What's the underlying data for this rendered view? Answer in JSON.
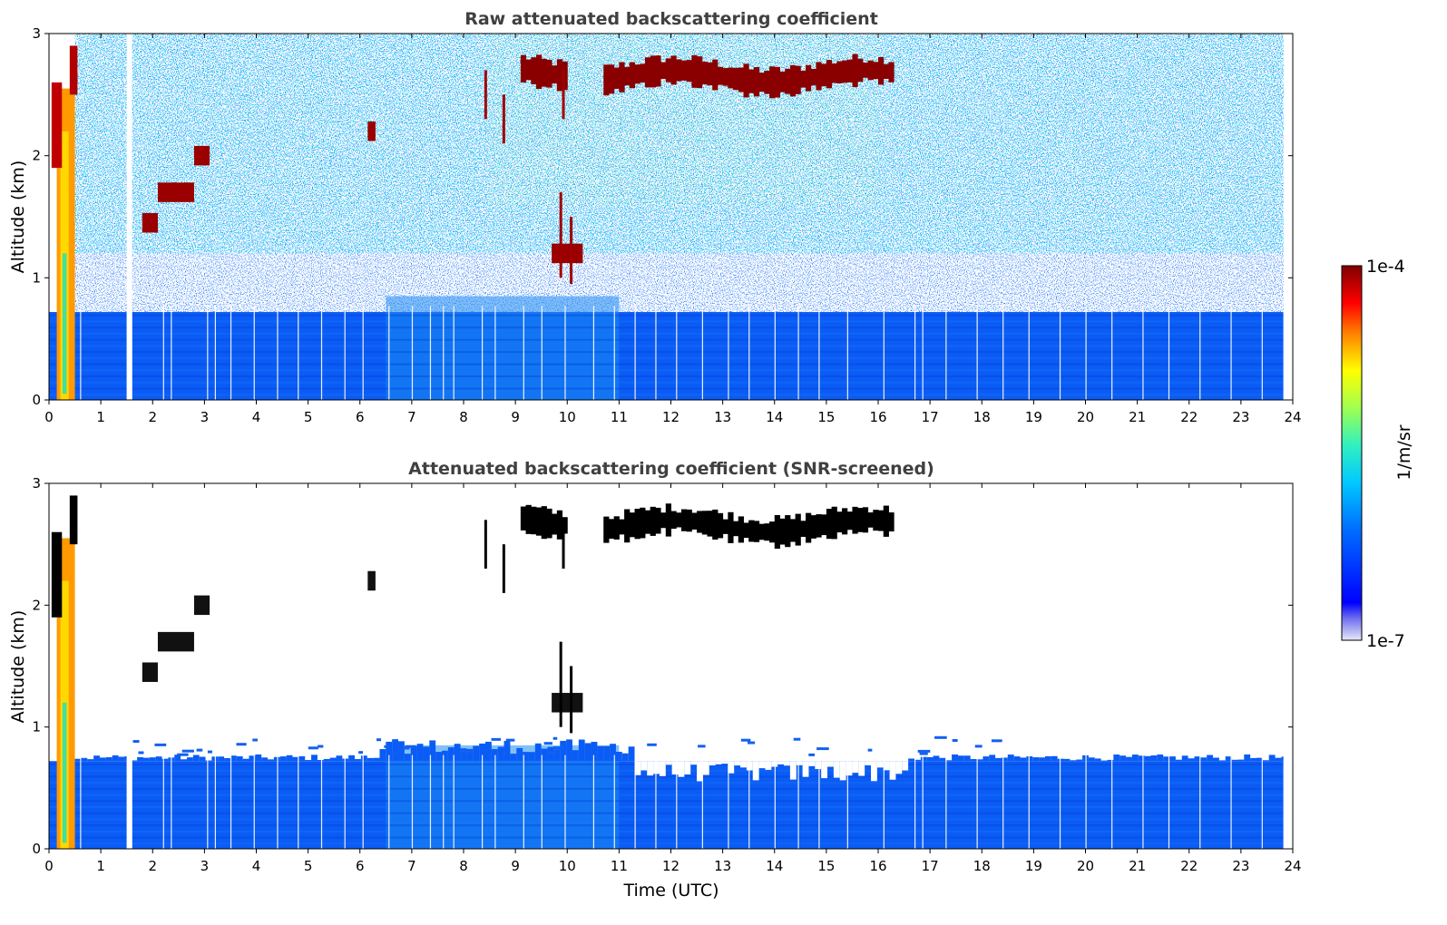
{
  "chart_data": [
    {
      "type": "heatmap",
      "title": "Raw attenuated backscattering coefficient",
      "ylabel": "Altitude (km)",
      "xlabel": "",
      "xlim": [
        0,
        24
      ],
      "ylim": [
        0,
        3
      ],
      "x_ticks": [
        "0",
        "1",
        "2",
        "3",
        "4",
        "5",
        "6",
        "7",
        "8",
        "9",
        "10",
        "11",
        "12",
        "13",
        "14",
        "15",
        "16",
        "17",
        "18",
        "19",
        "20",
        "21",
        "22",
        "23",
        "24"
      ],
      "y_ticks": [
        "0",
        "1",
        "2",
        "3"
      ],
      "screened": false,
      "features": {
        "boundary_layer_top_km": 0.72,
        "low_cloud": {
          "time": [
            0.05,
            0.55
          ],
          "alt": [
            0,
            2.9
          ]
        },
        "upper_cloud": [
          {
            "time": [
              9.1,
              9.9
            ],
            "alt_center": 2.7
          },
          {
            "time": [
              10.7,
              16.2
            ],
            "alt_center": 2.65
          }
        ],
        "mid_clouds": [
          {
            "time": [
              1.8,
              2.1
            ],
            "alt_center": 1.45
          },
          {
            "time": [
              2.1,
              2.8
            ],
            "alt_center": 1.7
          },
          {
            "time": [
              2.8,
              3.1
            ],
            "alt_center": 2.0
          },
          {
            "time": [
              6.15,
              6.3
            ],
            "alt_center": 2.2
          },
          {
            "time": [
              9.7,
              10.3
            ],
            "alt_center": 1.2
          }
        ]
      }
    },
    {
      "type": "heatmap",
      "title": "Attenuated backscattering coefficient (SNR-screened)",
      "ylabel": "Altitude (km)",
      "xlabel": "Time (UTC)",
      "xlim": [
        0,
        24
      ],
      "ylim": [
        0,
        3
      ],
      "x_ticks": [
        "0",
        "1",
        "2",
        "3",
        "4",
        "5",
        "6",
        "7",
        "8",
        "9",
        "10",
        "11",
        "12",
        "13",
        "14",
        "15",
        "16",
        "17",
        "18",
        "19",
        "20",
        "21",
        "22",
        "23",
        "24"
      ],
      "y_ticks": [
        "0",
        "1",
        "2",
        "3"
      ],
      "screened": true
    }
  ],
  "colorbar": {
    "label": "1/m/sr",
    "max_label": "1e-4",
    "min_label": "1e-7",
    "colormap": "jet"
  }
}
